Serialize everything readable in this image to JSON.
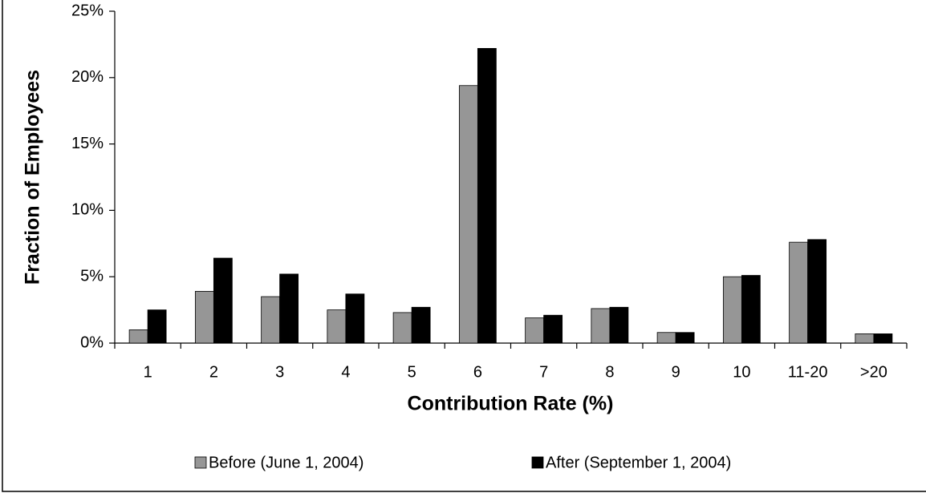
{
  "chart_data": {
    "type": "bar",
    "x_label": "Contribution Rate (%)",
    "y_label": "Fraction of Employees",
    "categories": [
      "1",
      "2",
      "3",
      "4",
      "5",
      "6",
      "7",
      "8",
      "9",
      "10",
      "11-20",
      ">20"
    ],
    "series": [
      {
        "name": "Before (June 1, 2004)",
        "color": "#969696",
        "values": [
          1.0,
          3.9,
          3.5,
          2.5,
          2.3,
          19.4,
          1.9,
          2.6,
          0.8,
          5.0,
          7.6,
          0.7
        ]
      },
      {
        "name": "After (September 1, 2004)",
        "color": "#000000",
        "values": [
          2.5,
          6.4,
          5.2,
          3.7,
          2.7,
          22.2,
          2.1,
          2.7,
          0.8,
          5.1,
          7.8,
          0.7
        ]
      }
    ],
    "ylim": [
      0,
      25
    ],
    "yticks": [
      {
        "value": 0,
        "label": "0%"
      },
      {
        "value": 5,
        "label": "5%"
      },
      {
        "value": 10,
        "label": "10%"
      },
      {
        "value": 15,
        "label": "15%"
      },
      {
        "value": 20,
        "label": "20%"
      },
      {
        "value": 25,
        "label": "25%"
      }
    ],
    "grid": false,
    "legend": "bottom"
  }
}
